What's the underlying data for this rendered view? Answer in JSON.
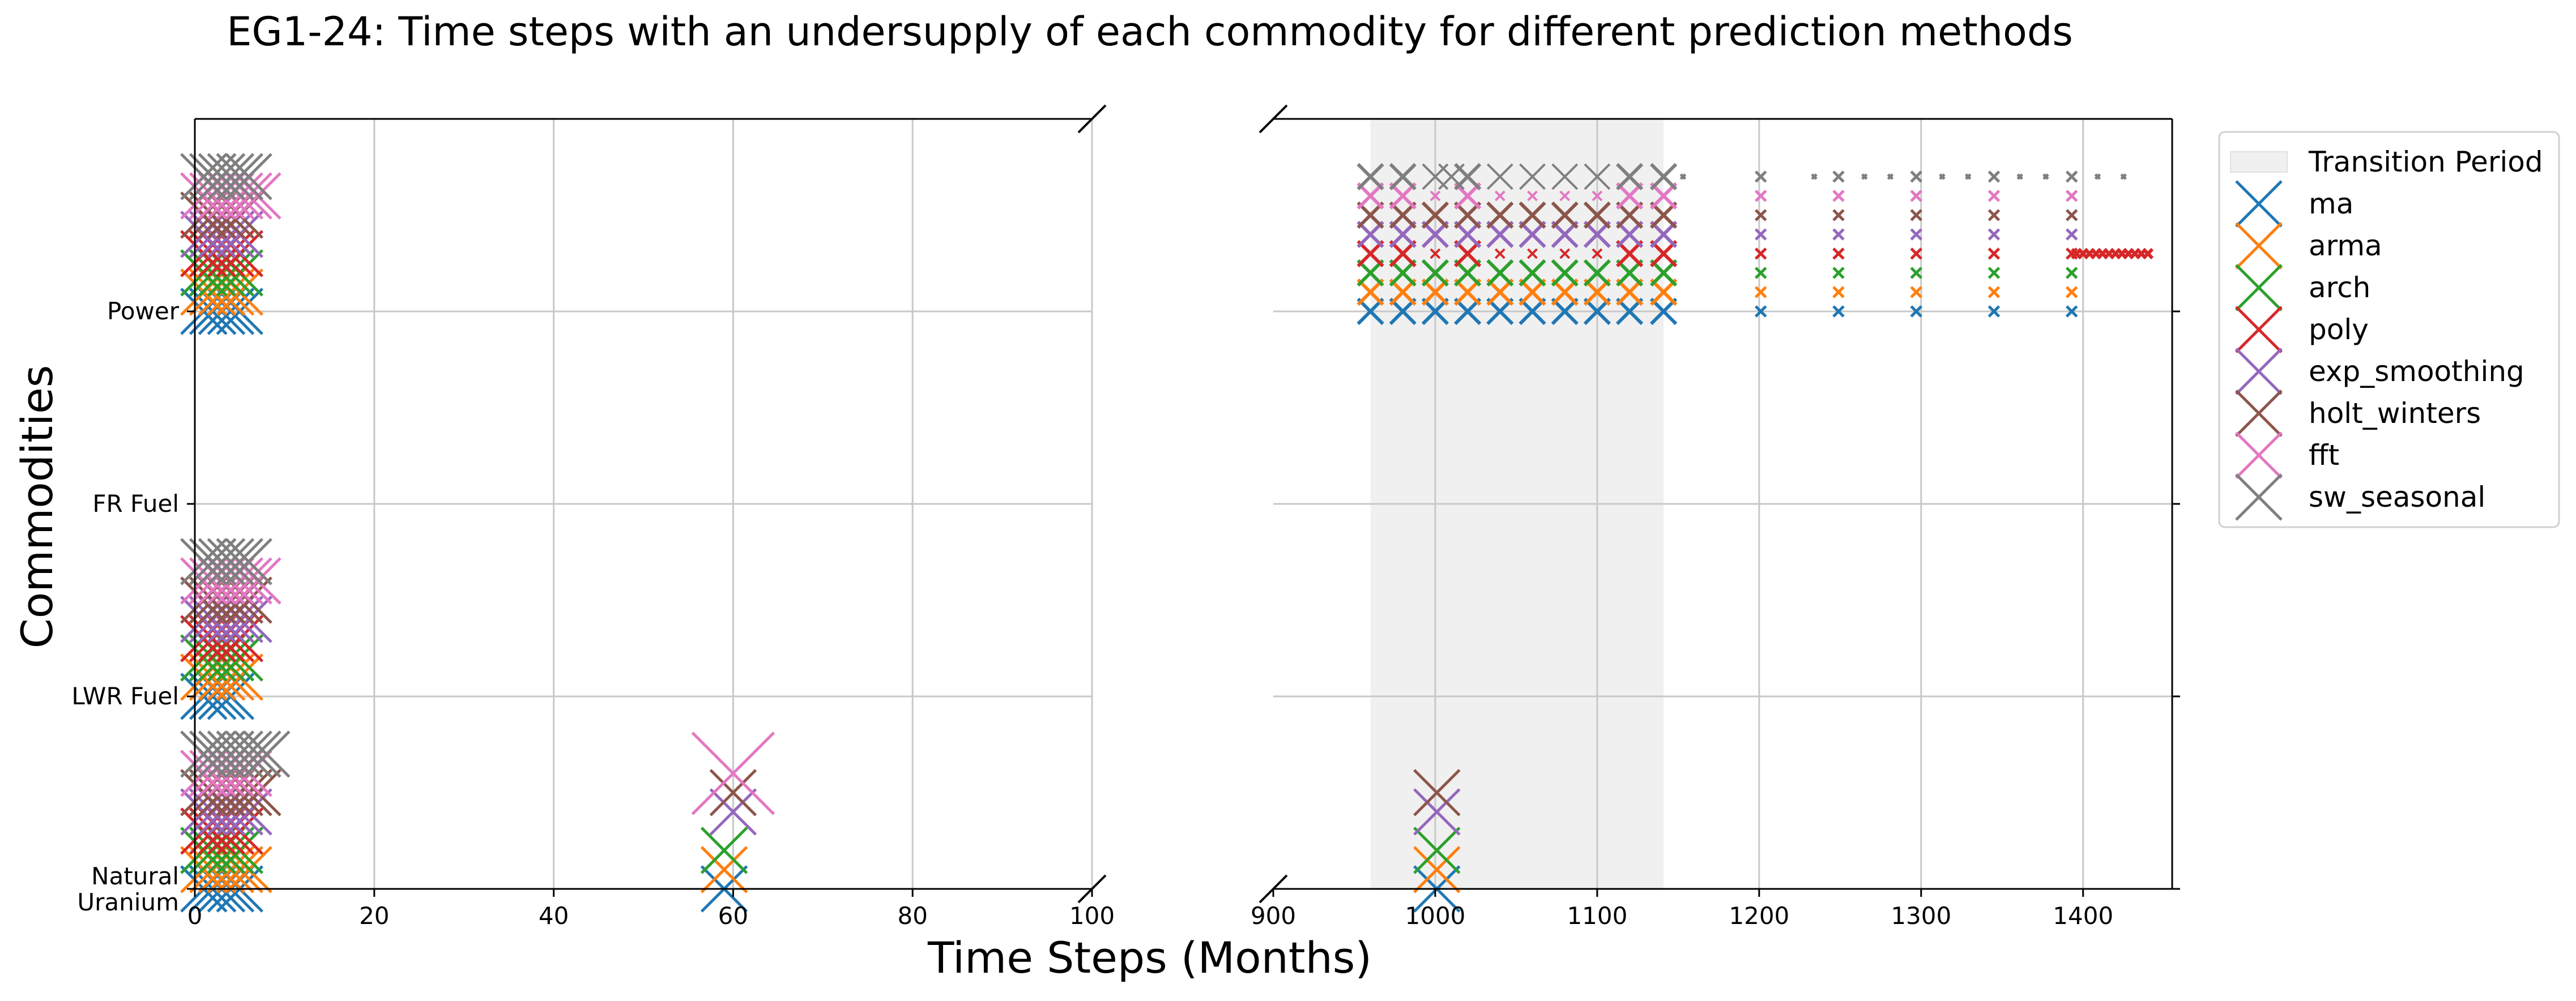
{
  "chart_data": {
    "type": "scatter",
    "title": "EG1-24: Time steps with an undersupply of each commodity for different prediction methods",
    "xlabel": "Time Steps (Months)",
    "ylabel": "Commodities",
    "categories": [
      "Natural Uranium",
      "LWR Fuel",
      "FR Fuel",
      "Power"
    ],
    "category_labels": [
      "Natural\nUranium",
      "LWR Fuel",
      "FR Fuel",
      "Power"
    ],
    "x_axis_break": true,
    "panels": [
      {
        "name": "left",
        "xlim": [
          0,
          100
        ],
        "xticks": [
          0,
          20,
          40,
          60,
          80,
          100
        ]
      },
      {
        "name": "right",
        "xlim": [
          900,
          1455
        ],
        "xticks": [
          900,
          1000,
          1100,
          1200,
          1300,
          1400
        ]
      }
    ],
    "grid": true,
    "shaded_regions": [
      {
        "label": "Transition Period",
        "x0": 960,
        "x1": 1141,
        "color": "#f0f0f0"
      }
    ],
    "legend": {
      "position": "outside-right",
      "entries": [
        "Transition Period",
        "ma",
        "arma",
        "arch",
        "poly",
        "exp_smoothing",
        "holt_winters",
        "fft",
        "sw_seasonal"
      ]
    },
    "marker": "x",
    "series": [
      {
        "name": "ma",
        "color": "#1f77b4",
        "offset": 0,
        "points": [
          {
            "commodity": "Natural Uranium",
            "x": [
              1,
              2,
              3,
              4,
              5,
              59,
              1001
            ]
          },
          {
            "commodity": "LWR Fuel",
            "x": [
              1,
              2,
              3,
              4
            ]
          },
          {
            "commodity": "Power",
            "x": [
              1,
              2,
              3,
              4,
              5,
              960,
              980,
              1000,
              1020,
              1040,
              1060,
              1080,
              1100,
              1120,
              1141,
              1201,
              1249,
              1297,
              1345,
              1393
            ]
          }
        ]
      },
      {
        "name": "arma",
        "color": "#ff7f0e",
        "offset": 1,
        "points": [
          {
            "commodity": "Natural Uranium",
            "x": [
              1,
              2,
              3,
              4,
              5,
              6,
              59,
              1001
            ]
          },
          {
            "commodity": "LWR Fuel",
            "x": [
              1,
              2,
              3,
              4,
              5
            ]
          },
          {
            "commodity": "Power",
            "x": [
              1,
              2,
              3,
              4,
              5,
              960,
              980,
              1000,
              1020,
              1040,
              1060,
              1080,
              1100,
              1120,
              1141,
              1201,
              1249,
              1297,
              1345,
              1393
            ]
          }
        ]
      },
      {
        "name": "arch",
        "color": "#2ca02c",
        "offset": 2,
        "points": [
          {
            "commodity": "Natural Uranium",
            "x": [
              1,
              2,
              3,
              4,
              5,
              59,
              1001
            ]
          },
          {
            "commodity": "LWR Fuel",
            "x": [
              1,
              2,
              3,
              4,
              5
            ]
          },
          {
            "commodity": "Power",
            "x": [
              1,
              2,
              3,
              4,
              5,
              960,
              980,
              1000,
              1020,
              1040,
              1060,
              1080,
              1100,
              1120,
              1141,
              1201,
              1249,
              1297,
              1345,
              1393
            ]
          }
        ]
      },
      {
        "name": "poly",
        "color": "#d62728",
        "offset": 3,
        "points": [
          {
            "commodity": "Natural Uranium",
            "x": [
              1,
              2,
              3,
              4,
              5
            ]
          },
          {
            "commodity": "LWR Fuel",
            "x": [
              1,
              2,
              3,
              4,
              5
            ]
          },
          {
            "commodity": "Power",
            "x": [
              1,
              2,
              3,
              4,
              5,
              960,
              980,
              1000,
              1020,
              1040,
              1060,
              1080,
              1100,
              1120,
              1141,
              1201,
              1249,
              1297,
              1345,
              1393,
              1396,
              1400,
              1404,
              1408,
              1412,
              1416,
              1420,
              1424,
              1428,
              1432,
              1436,
              1440
            ]
          }
        ]
      },
      {
        "name": "exp_smoothing",
        "color": "#9467bd",
        "offset": 4,
        "points": [
          {
            "commodity": "Natural Uranium",
            "x": [
              1,
              2,
              3,
              4,
              5,
              6,
              60,
              1001
            ]
          },
          {
            "commodity": "LWR Fuel",
            "x": [
              1,
              2,
              3,
              4,
              5,
              6
            ]
          },
          {
            "commodity": "Power",
            "x": [
              1,
              2,
              3,
              4,
              5,
              960,
              980,
              1000,
              1020,
              1040,
              1060,
              1080,
              1100,
              1120,
              1141,
              1201,
              1249,
              1297,
              1345,
              1393
            ]
          }
        ]
      },
      {
        "name": "holt_winters",
        "color": "#8c564b",
        "offset": 5,
        "points": [
          {
            "commodity": "Natural Uranium",
            "x": [
              1,
              2,
              3,
              4,
              5,
              6,
              7,
              60,
              1001
            ]
          },
          {
            "commodity": "LWR Fuel",
            "x": [
              1,
              2,
              3,
              4,
              5,
              6
            ]
          },
          {
            "commodity": "Power",
            "x": [
              1,
              2,
              3,
              4,
              5,
              960,
              980,
              1000,
              1020,
              1040,
              1060,
              1080,
              1100,
              1120,
              1141,
              1201,
              1249,
              1297,
              1345,
              1393
            ]
          }
        ]
      },
      {
        "name": "fft",
        "color": "#e377c2",
        "offset": 6,
        "points": [
          {
            "commodity": "Natural Uranium",
            "x": [
              1,
              2,
              3,
              4,
              5,
              6,
              60
            ]
          },
          {
            "commodity": "LWR Fuel",
            "x": [
              1,
              2,
              3,
              4,
              5,
              6,
              7
            ]
          },
          {
            "commodity": "Power",
            "x": [
              1,
              2,
              3,
              4,
              5,
              6,
              7,
              960,
              980,
              1000,
              1020,
              1040,
              1060,
              1080,
              1100,
              1120,
              1141,
              1201,
              1249,
              1297,
              1345,
              1393
            ]
          }
        ]
      },
      {
        "name": "sw_seasonal",
        "color": "#7f7f7f",
        "offset": 7,
        "points": [
          {
            "commodity": "Natural Uranium",
            "x": [
              1,
              2,
              3,
              4,
              5,
              6,
              7,
              8
            ]
          },
          {
            "commodity": "LWR Fuel",
            "x": [
              1,
              2,
              3,
              4,
              5,
              6
            ]
          },
          {
            "commodity": "Power",
            "x": [
              1,
              2,
              3,
              4,
              5,
              6,
              960,
              980,
              1000,
              1010,
              1020,
              1040,
              1060,
              1080,
              1100,
              1120,
              1141,
              1153,
              1201,
              1234,
              1249,
              1265,
              1281,
              1297,
              1313,
              1329,
              1345,
              1361,
              1377,
              1393,
              1409,
              1425
            ]
          }
        ]
      }
    ]
  }
}
